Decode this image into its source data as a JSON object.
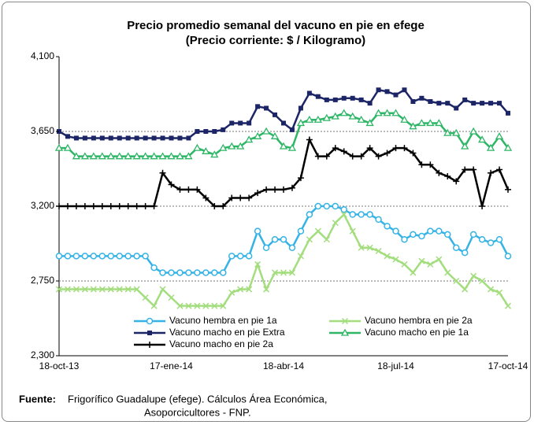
{
  "chart_data": {
    "type": "line",
    "title": "Precio promedio semanal del vacuno en pie en efege",
    "subtitle": "(Precio corriente: $ / Kilogramo)",
    "categories": [
      "18-oct-13",
      null,
      null,
      null,
      null,
      null,
      null,
      null,
      null,
      null,
      null,
      null,
      null,
      "17-ene-14",
      null,
      null,
      null,
      null,
      null,
      null,
      null,
      null,
      null,
      null,
      null,
      null,
      "18-abr-14",
      null,
      null,
      null,
      null,
      null,
      null,
      null,
      null,
      null,
      null,
      null,
      null,
      "18-jul-14",
      null,
      null,
      null,
      null,
      null,
      null,
      null,
      null,
      null,
      null,
      null,
      null,
      "17-oct-14"
    ],
    "ylim": [
      2300,
      4100
    ],
    "yticks": [
      {
        "value": 2300,
        "label": "2,300"
      },
      {
        "value": 2750,
        "label": "2,750"
      },
      {
        "value": 3200,
        "label": "3,200"
      },
      {
        "value": 3650,
        "label": "3,650"
      },
      {
        "value": 4100,
        "label": "4,100"
      }
    ],
    "grid": true,
    "series": [
      {
        "name": "Vacuno hembra en pie 1a",
        "color": "#35b3e6",
        "marker": "circle",
        "values": [
          2900,
          2900,
          2900,
          2900,
          2900,
          2900,
          2900,
          2900,
          2900,
          2900,
          2900,
          2830,
          2800,
          2800,
          2800,
          2800,
          2800,
          2800,
          2800,
          2800,
          2900,
          2900,
          2900,
          3050,
          2950,
          3000,
          3000,
          2950,
          3050,
          3150,
          3200,
          3200,
          3200,
          3180,
          3150,
          3150,
          3150,
          3120,
          3080,
          3050,
          3000,
          3030,
          3020,
          3050,
          3050,
          3030,
          2950,
          2920,
          3030,
          3000,
          2980,
          3000,
          2900
        ]
      },
      {
        "name": "Vacuno hembra en pie 2a",
        "color": "#a3dd7e",
        "marker": "x",
        "values": [
          2700,
          2700,
          2700,
          2700,
          2700,
          2700,
          2700,
          2700,
          2700,
          2700,
          2650,
          2600,
          2700,
          2650,
          2600,
          2600,
          2600,
          2600,
          2600,
          2600,
          2680,
          2700,
          2700,
          2850,
          2700,
          2800,
          2800,
          2800,
          2900,
          3000,
          3050,
          3000,
          3100,
          3150,
          3050,
          2950,
          2950,
          2930,
          2900,
          2880,
          2850,
          2800,
          2870,
          2850,
          2880,
          2800,
          2750,
          2700,
          2780,
          2750,
          2700,
          2680,
          2600
        ]
      },
      {
        "name": "Vacuno macho en pie Extra",
        "color": "#1c2566",
        "marker": "square",
        "values": [
          3650,
          3620,
          3610,
          3610,
          3610,
          3610,
          3610,
          3610,
          3610,
          3610,
          3610,
          3610,
          3610,
          3610,
          3610,
          3610,
          3650,
          3650,
          3650,
          3660,
          3700,
          3700,
          3700,
          3800,
          3790,
          3750,
          3700,
          3660,
          3790,
          3880,
          3860,
          3840,
          3840,
          3850,
          3850,
          3840,
          3820,
          3900,
          3890,
          3870,
          3900,
          3830,
          3850,
          3830,
          3820,
          3820,
          3790,
          3840,
          3820,
          3820,
          3820,
          3820,
          3760
        ]
      },
      {
        "name": "Vacuno macho en pie 1a",
        "color": "#2cb665",
        "marker": "triangle",
        "values": [
          3550,
          3550,
          3500,
          3500,
          3500,
          3500,
          3500,
          3500,
          3500,
          3500,
          3500,
          3500,
          3500,
          3500,
          3500,
          3500,
          3550,
          3530,
          3510,
          3550,
          3560,
          3560,
          3600,
          3620,
          3650,
          3620,
          3560,
          3550,
          3700,
          3720,
          3720,
          3730,
          3740,
          3760,
          3740,
          3720,
          3700,
          3760,
          3760,
          3760,
          3720,
          3680,
          3700,
          3700,
          3700,
          3640,
          3640,
          3560,
          3650,
          3600,
          3550,
          3620,
          3550
        ]
      },
      {
        "name": "Vacuno macho en pie 2a",
        "color": "#000000",
        "marker": "plus",
        "values": [
          3200,
          3200,
          3200,
          3200,
          3200,
          3200,
          3200,
          3200,
          3200,
          3200,
          3200,
          3200,
          3400,
          3330,
          3300,
          3300,
          3300,
          3250,
          3200,
          3200,
          3250,
          3250,
          3250,
          3280,
          3300,
          3300,
          3300,
          3310,
          3370,
          3600,
          3500,
          3500,
          3550,
          3530,
          3500,
          3500,
          3550,
          3500,
          3520,
          3550,
          3550,
          3520,
          3450,
          3450,
          3400,
          3380,
          3350,
          3420,
          3420,
          3200,
          3400,
          3420,
          3300
        ]
      }
    ],
    "source": {
      "label": "Fuente:",
      "lines": [
        "Frigorífico Guadalupe (efege). Cálculos Área Económica,",
        "Asoporcicultores  - FNP."
      ]
    }
  }
}
